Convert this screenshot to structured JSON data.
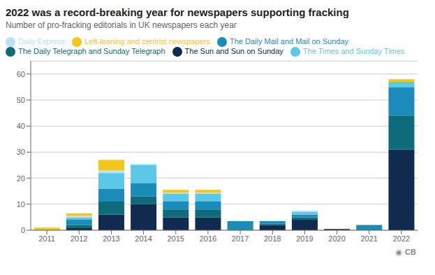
{
  "chart_data": {
    "type": "bar",
    "title": "2022 was a record-breaking year for newspapers supporting fracking",
    "subtitle": "Number of pro-fracking editorials in UK newspapers each year",
    "categories": [
      2011,
      2012,
      2013,
      2014,
      2015,
      2016,
      2017,
      2018,
      2019,
      2020,
      2021,
      2022
    ],
    "series": [
      {
        "name": "The Sun and Sun on Sunday",
        "color": "#102b50",
        "values": [
          0,
          1,
          6,
          10,
          5,
          5,
          0,
          2,
          4,
          0.5,
          0,
          31
        ]
      },
      {
        "name": "The Daily Telegraph and Sunday Telegraph",
        "color": "#0e6b7a",
        "values": [
          0,
          1,
          5,
          3,
          3,
          3,
          0,
          0.5,
          1,
          0,
          0,
          13
        ]
      },
      {
        "name": "The Daily Mail and Mail on Sunday",
        "color": "#1b8cba",
        "values": [
          0,
          2,
          5,
          5,
          3,
          3,
          3.5,
          1,
          1,
          0,
          2,
          11
        ]
      },
      {
        "name": "The Times and Sunday Times",
        "color": "#5bc8e8",
        "values": [
          0,
          1,
          6,
          7,
          3,
          3,
          0,
          0,
          1,
          0,
          0,
          2
        ]
      },
      {
        "name": "Daily Express",
        "color": "#b8e2f5",
        "values": [
          0,
          0.5,
          1,
          0.5,
          0.5,
          0.5,
          0,
          0,
          0.5,
          0,
          0,
          0
        ]
      },
      {
        "name": "Left-leaning and centrist newspapers",
        "color": "#f5c518",
        "values": [
          1,
          1,
          4,
          0,
          1,
          1,
          0,
          0,
          0,
          0,
          0,
          1
        ]
      }
    ],
    "stacked": true,
    "ylim": [
      0,
      65
    ],
    "yticks": [
      0,
      10,
      20,
      30,
      40,
      50,
      60
    ],
    "grid": true,
    "legend": "upper left",
    "annotations": [
      "◉",
      "CB"
    ]
  }
}
